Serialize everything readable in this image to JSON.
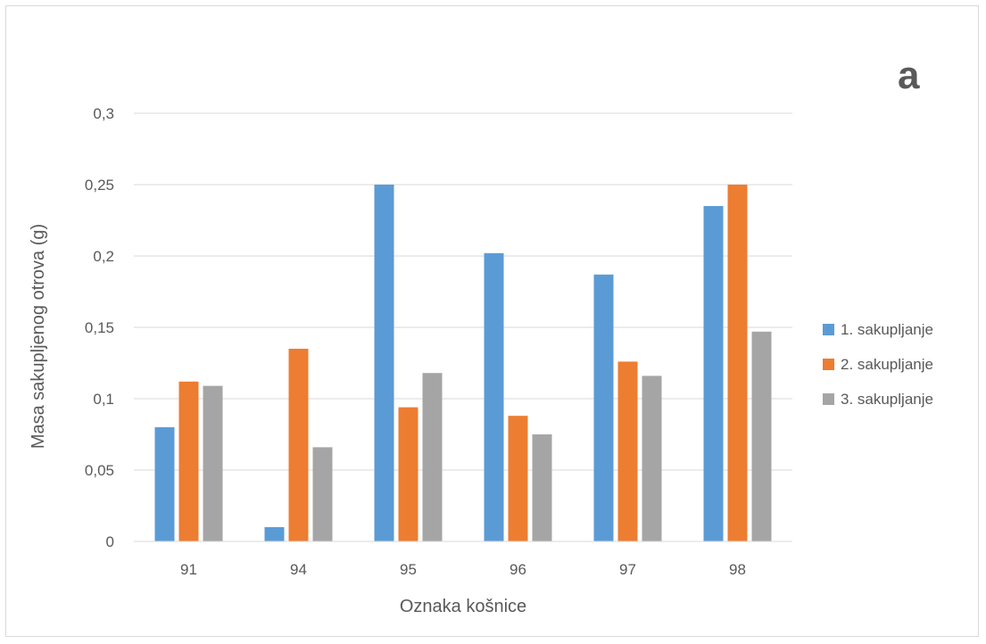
{
  "panel_letter": "a",
  "chart_data": {
    "type": "bar",
    "title": "",
    "xlabel": "Oznaka košnice",
    "ylabel": "Masa sakupljenog otrova (g)",
    "categories": [
      "91",
      "94",
      "95",
      "96",
      "97",
      "98"
    ],
    "series": [
      {
        "name": "1. sakupljanje",
        "color": "#5b9bd5",
        "values": [
          0.08,
          0.01,
          0.25,
          0.202,
          0.187,
          0.235
        ]
      },
      {
        "name": "2. sakupljanje",
        "color": "#ed7d31",
        "values": [
          0.112,
          0.135,
          0.094,
          0.088,
          0.126,
          0.25
        ]
      },
      {
        "name": "3. sakupljanje",
        "color": "#a5a5a5",
        "values": [
          0.109,
          0.066,
          0.118,
          0.075,
          0.116,
          0.147
        ]
      }
    ],
    "ylim": [
      0,
      0.3
    ],
    "yticks": [
      0,
      0.05,
      0.1,
      0.15,
      0.2,
      0.25,
      0.3
    ],
    "ytick_labels": [
      "0",
      "0,05",
      "0,1",
      "0,15",
      "0,2",
      "0,25",
      "0,3"
    ],
    "grid": true,
    "legend_position": "right"
  }
}
